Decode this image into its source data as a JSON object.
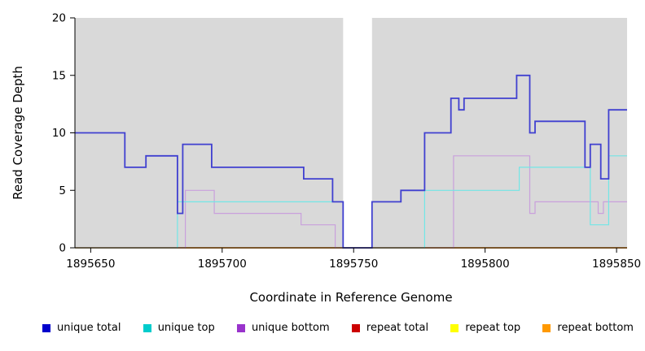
{
  "chart_data": {
    "type": "line",
    "subtype": "step",
    "title": "",
    "xlabel": "Coordinate in Reference Genome",
    "ylabel": "Read Coverage Depth",
    "xlim": [
      1895644,
      1895854
    ],
    "ylim": [
      0,
      20
    ],
    "x_ticks": [
      1895650,
      1895700,
      1895750,
      1895800,
      1895850
    ],
    "y_ticks": [
      0,
      5,
      10,
      15,
      20
    ],
    "plot_bg": "#d9d9d9",
    "grid": false,
    "legend_position": "bottom",
    "gap_region": {
      "x0": 1895746,
      "x1": 1895757,
      "color": "#ffffff"
    },
    "series": [
      {
        "name": "unique total",
        "color": "#4040d0",
        "legend_color": "#0000cc",
        "width": 1.8,
        "points": [
          [
            1895644,
            10
          ],
          [
            1895663,
            7
          ],
          [
            1895671,
            8
          ],
          [
            1895683,
            3
          ],
          [
            1895685,
            9
          ],
          [
            1895696,
            7
          ],
          [
            1895731,
            6
          ],
          [
            1895742,
            4
          ],
          [
            1895746,
            0
          ],
          [
            1895757,
            4
          ],
          [
            1895768,
            5
          ],
          [
            1895777,
            10
          ],
          [
            1895787,
            13
          ],
          [
            1895790,
            12
          ],
          [
            1895792,
            13
          ],
          [
            1895812,
            15
          ],
          [
            1895817,
            10
          ],
          [
            1895819,
            11
          ],
          [
            1895838,
            7
          ],
          [
            1895840,
            9
          ],
          [
            1895844,
            6
          ],
          [
            1895847,
            12
          ]
        ]
      },
      {
        "name": "unique top",
        "color": "#72e6e6",
        "legend_color": "#00cccc",
        "width": 1.2,
        "points": [
          [
            1895644,
            0
          ],
          [
            1895683,
            4
          ],
          [
            1895746,
            0
          ],
          [
            1895777,
            5
          ],
          [
            1895813,
            7
          ],
          [
            1895840,
            2
          ],
          [
            1895847,
            8
          ]
        ]
      },
      {
        "name": "unique bottom",
        "color": "#c9a0dc",
        "legend_color": "#9933cc",
        "width": 1.2,
        "points": [
          [
            1895644,
            0
          ],
          [
            1895686,
            5
          ],
          [
            1895697,
            3
          ],
          [
            1895730,
            2
          ],
          [
            1895743,
            0
          ],
          [
            1895788,
            8
          ],
          [
            1895817,
            3
          ],
          [
            1895819,
            4
          ],
          [
            1895843,
            3
          ],
          [
            1895845,
            4
          ]
        ]
      },
      {
        "name": "repeat total",
        "color": "#cc0000",
        "legend_color": "#cc0000",
        "width": 1.2,
        "points": [
          [
            1895644,
            0
          ]
        ]
      },
      {
        "name": "repeat top",
        "color": "#ffff00",
        "legend_color": "#ffff00",
        "width": 1.2,
        "points": [
          [
            1895644,
            0
          ]
        ]
      },
      {
        "name": "repeat bottom",
        "color": "#ff9933",
        "legend_color": "#ff9900",
        "width": 1.4,
        "points": [
          [
            1895644,
            0
          ]
        ]
      }
    ]
  }
}
